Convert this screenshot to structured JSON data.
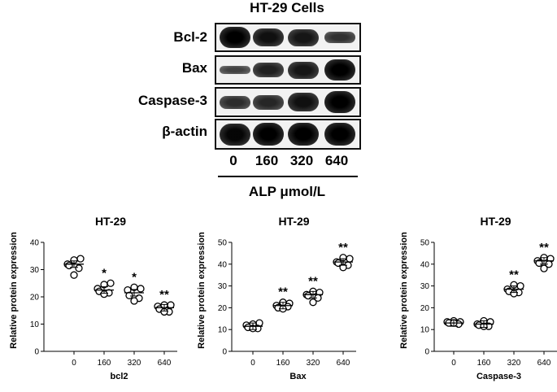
{
  "blot": {
    "title": "HT-29 Cells",
    "rows": [
      {
        "label": "Bcl-2",
        "intensity": [
          1.0,
          0.85,
          0.8,
          0.55
        ]
      },
      {
        "label": "Bax",
        "intensity": [
          0.4,
          0.7,
          0.8,
          1.0
        ]
      },
      {
        "label": "Caspase-3",
        "intensity": [
          0.6,
          0.65,
          0.85,
          1.0
        ]
      },
      {
        "label": "β-actin",
        "intensity": [
          0.95,
          1.0,
          1.0,
          1.0
        ]
      }
    ],
    "lanes": [
      "0",
      "160",
      "320",
      "640"
    ],
    "treatment_label": "ALP μmol/L"
  },
  "chart_data": [
    {
      "type": "scatter",
      "title": "HT-29",
      "xlabel": "bcl2",
      "ylabel": "Relative protein expression",
      "categories": [
        "0",
        "160",
        "320",
        "640"
      ],
      "ylim": [
        0,
        40
      ],
      "yticks": [
        0,
        10,
        20,
        30,
        40
      ],
      "points": [
        [
          32,
          33.5,
          34,
          31.5,
          30.5,
          28
        ],
        [
          23,
          24.5,
          25,
          22,
          21.5,
          21
        ],
        [
          22.5,
          23.5,
          23,
          20.5,
          19.5,
          18.5
        ],
        [
          16.5,
          17,
          17,
          15.5,
          14.5,
          14.5
        ]
      ],
      "means": [
        32,
        22.5,
        21.5,
        16
      ],
      "significance": [
        "",
        "*",
        "*",
        "**"
      ]
    },
    {
      "type": "scatter",
      "title": "HT-29",
      "xlabel": "Bax",
      "ylabel": "Relative protein expression",
      "categories": [
        "0",
        "160",
        "320",
        "640"
      ],
      "ylim": [
        0,
        50
      ],
      "yticks": [
        0,
        10,
        20,
        30,
        40,
        50
      ],
      "points": [
        [
          12,
          12.5,
          13,
          11,
          10.5,
          10.5
        ],
        [
          21,
          22.5,
          22,
          20,
          20.5,
          19.5
        ],
        [
          26,
          27.5,
          27,
          25.5,
          24.5,
          22.5
        ],
        [
          41,
          43,
          42.5,
          40.5,
          39.5,
          38.5
        ]
      ],
      "means": [
        11.5,
        21,
        26,
        41
      ],
      "significance": [
        "",
        "**",
        "**",
        "**"
      ]
    },
    {
      "type": "scatter",
      "title": "HT-29",
      "xlabel": "Caspase-3",
      "ylabel": "Relative protein expression",
      "categories": [
        "0",
        "160",
        "320",
        "640"
      ],
      "ylim": [
        0,
        50
      ],
      "yticks": [
        0,
        10,
        20,
        30,
        40,
        50
      ],
      "points": [
        [
          13.5,
          14,
          13.5,
          13,
          12.5,
          13
        ],
        [
          12.5,
          14,
          13.5,
          12,
          11.5,
          11.5
        ],
        [
          28.5,
          30.5,
          30,
          27.5,
          27,
          26.5
        ],
        [
          41.5,
          43,
          42.5,
          40.5,
          40,
          38
        ]
      ],
      "means": [
        13,
        12.5,
        28.5,
        41.5
      ],
      "significance": [
        "",
        "",
        "**",
        "**"
      ]
    }
  ]
}
